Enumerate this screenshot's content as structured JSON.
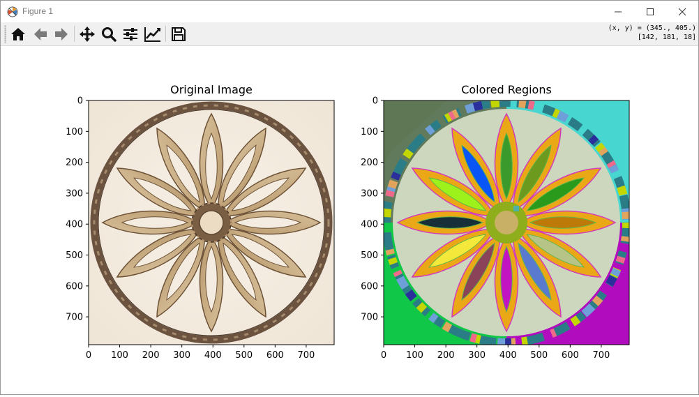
{
  "window": {
    "title": "Figure 1"
  },
  "toolbar": {
    "buttons": [
      {
        "name": "home",
        "icon": "home-icon"
      },
      {
        "name": "back",
        "icon": "arrow-left-icon"
      },
      {
        "name": "forward",
        "icon": "arrow-right-icon"
      },
      {
        "name": "pan",
        "icon": "move-icon"
      },
      {
        "name": "zoom",
        "icon": "magnifier-icon"
      },
      {
        "name": "configure-subplots",
        "icon": "sliders-icon"
      },
      {
        "name": "edit-axis",
        "icon": "line-chart-icon"
      },
      {
        "name": "save",
        "icon": "floppy-icon"
      }
    ],
    "coords_line1": "(x, y) = (345., 405.)",
    "coords_line2": "[142, 181, 18]"
  },
  "subplots": {
    "left": {
      "title": "Original Image"
    },
    "right": {
      "title": "Colored Regions"
    }
  },
  "chart_data": [
    {
      "type": "image",
      "title": "Original Image",
      "xlim": [
        0,
        790
      ],
      "ylim": [
        790,
        0
      ],
      "x_ticks": [
        0,
        100,
        200,
        300,
        400,
        500,
        600,
        700
      ],
      "y_ticks": [
        0,
        100,
        200,
        300,
        400,
        500,
        600,
        700
      ]
    },
    {
      "type": "image",
      "title": "Colored Regions",
      "xlim": [
        0,
        790
      ],
      "ylim": [
        790,
        0
      ],
      "x_ticks": [
        0,
        100,
        200,
        300,
        400,
        500,
        600,
        700
      ],
      "y_ticks": [
        0,
        100,
        200,
        300,
        400,
        500,
        600,
        700
      ]
    }
  ]
}
